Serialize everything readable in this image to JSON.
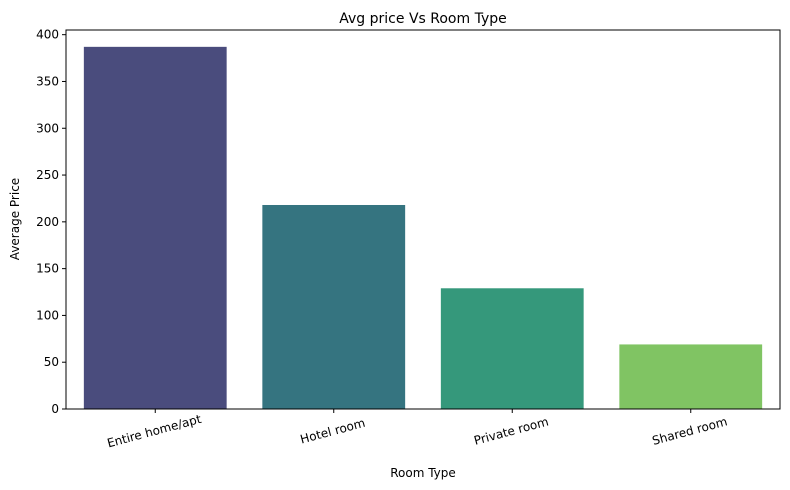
{
  "chart_data": {
    "type": "bar",
    "title": "Avg price Vs Room Type",
    "xlabel": "Room Type",
    "ylabel": "Average Price",
    "categories": [
      "Entire home/apt",
      "Hotel room",
      "Private room",
      "Shared room"
    ],
    "values": [
      387,
      218,
      129,
      69
    ],
    "colors": [
      "#482f78",
      "#2a7482",
      "#27a078",
      "#76c45a"
    ],
    "bar_colors": [
      "#4a4c7d",
      "#357480",
      "#35987b",
      "#80c463"
    ],
    "ylim": [
      0,
      405
    ],
    "yticks": [
      0,
      50,
      100,
      150,
      200,
      250,
      300,
      350,
      400
    ],
    "grid": false,
    "x_tick_rotation_deg": -15
  }
}
